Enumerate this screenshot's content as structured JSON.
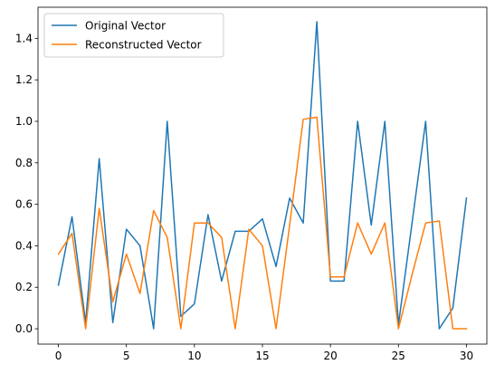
{
  "chart_data": {
    "type": "line",
    "title": "",
    "xlabel": "",
    "ylabel": "",
    "xlim": [
      -1.5,
      31.5
    ],
    "ylim": [
      -0.074,
      1.55
    ],
    "xticks": [
      0,
      5,
      10,
      15,
      20,
      25,
      30
    ],
    "yticks": [
      0.0,
      0.2,
      0.4,
      0.6,
      0.8,
      1.0,
      1.2,
      1.4
    ],
    "xtick_labels": [
      "0",
      "5",
      "10",
      "15",
      "20",
      "25",
      "30"
    ],
    "ytick_labels": [
      "0.0",
      "0.2",
      "0.4",
      "0.6",
      "0.8",
      "1.0",
      "1.2",
      "1.4"
    ],
    "grid": false,
    "legend_position": "top-left",
    "x": [
      0,
      1,
      2,
      3,
      4,
      5,
      6,
      7,
      8,
      9,
      10,
      11,
      12,
      13,
      14,
      15,
      16,
      17,
      18,
      19,
      20,
      21,
      22,
      23,
      24,
      25,
      26,
      27,
      28,
      29,
      30
    ],
    "series": [
      {
        "name": "Original Vector",
        "color": "#1f77b4",
        "values": [
          0.21,
          0.54,
          0.03,
          0.82,
          0.03,
          0.48,
          0.4,
          0.0,
          1.0,
          0.06,
          0.12,
          0.55,
          0.23,
          0.47,
          0.47,
          0.53,
          0.3,
          0.63,
          0.51,
          1.48,
          0.23,
          0.23,
          1.0,
          0.5,
          1.0,
          0.02,
          0.51,
          1.0,
          0.0,
          0.1,
          0.63
        ]
      },
      {
        "name": "Reconstructed Vector",
        "color": "#ff7f0e",
        "values": [
          0.36,
          0.46,
          0.0,
          0.58,
          0.13,
          0.36,
          0.17,
          0.57,
          0.44,
          0.0,
          0.51,
          0.51,
          0.44,
          0.0,
          0.48,
          0.4,
          0.0,
          0.5,
          1.01,
          1.02,
          0.25,
          0.25,
          0.51,
          0.36,
          0.51,
          0.0,
          0.26,
          0.51,
          0.52,
          0.0,
          0.0
        ]
      }
    ]
  }
}
